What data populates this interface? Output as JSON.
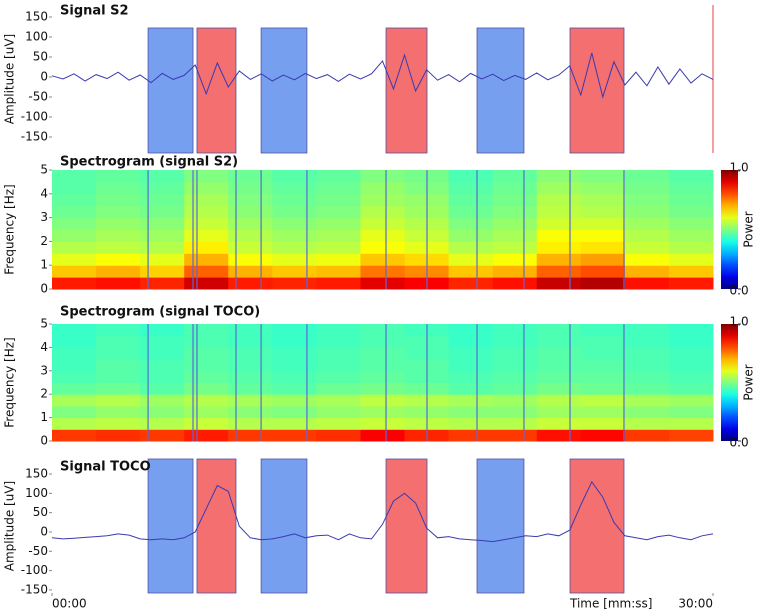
{
  "chart_data": [
    {
      "type": "line",
      "title": "Signal S2",
      "ylabel": "Amplitude [uV]",
      "color": "#3a3ab0",
      "xlim": [
        0,
        30
      ],
      "ylim": [
        -190,
        180
      ],
      "yticks": [
        -150,
        -100,
        -50,
        0,
        50,
        100,
        150
      ],
      "x": [
        0,
        0.5,
        1,
        1.5,
        2,
        2.5,
        3,
        3.5,
        4,
        4.5,
        5,
        5.5,
        6,
        6.5,
        7,
        7.5,
        8,
        8.5,
        9,
        9.5,
        10,
        10.5,
        11,
        11.5,
        12,
        12.5,
        13,
        13.5,
        14,
        14.5,
        15,
        15.5,
        16,
        16.5,
        17,
        17.5,
        18,
        18.5,
        19,
        19.5,
        20,
        20.5,
        21,
        21.5,
        22,
        22.5,
        23,
        23.5,
        24,
        24.5,
        25,
        25.5,
        26,
        26.5,
        27,
        27.5,
        28,
        28.5,
        29,
        29.5,
        30
      ],
      "values": [
        3,
        -5,
        8,
        -10,
        6,
        -4,
        12,
        -8,
        5,
        -14,
        9,
        -6,
        4,
        30,
        -42,
        35,
        -25,
        15,
        -6,
        8,
        -10,
        5,
        -7,
        9,
        -4,
        6,
        -11,
        7,
        -5,
        8,
        40,
        -30,
        55,
        -35,
        18,
        -8,
        6,
        -12,
        9,
        -5,
        7,
        -9,
        4,
        -6,
        10,
        -7,
        5,
        28,
        -45,
        60,
        -50,
        38,
        -20,
        12,
        -22,
        25,
        -18,
        20,
        -15,
        8,
        -6
      ],
      "regions": [
        {
          "start": 4.36,
          "end": 6.4,
          "color": "#779ff0"
        },
        {
          "start": 6.58,
          "end": 8.35,
          "color": "#f46f6f"
        },
        {
          "start": 9.49,
          "end": 11.57,
          "color": "#779ff0"
        },
        {
          "start": 15.16,
          "end": 17.02,
          "color": "#f46f6f"
        },
        {
          "start": 19.29,
          "end": 21.42,
          "color": "#779ff0"
        },
        {
          "start": 23.51,
          "end": 25.96,
          "color": "#f46f6f"
        }
      ]
    },
    {
      "type": "heatmap",
      "title": "Spectrogram (signal S2)",
      "ylabel": "Frequency [Hz]",
      "colorbar_label": "Power",
      "xlim": [
        0,
        30
      ],
      "ylim": [
        0,
        5
      ],
      "yticks": [
        0,
        1,
        2,
        3,
        4,
        5
      ],
      "clim": [
        0,
        1
      ],
      "cticks": [
        {
          "value": 0,
          "label": "0.0"
        },
        {
          "value": 1,
          "label": "1.0"
        }
      ],
      "z": [
        [
          0.85,
          0.86,
          0.84,
          0.92,
          0.85,
          0.84,
          0.85,
          0.9,
          0.88,
          0.84,
          0.86,
          0.93,
          0.95,
          0.86,
          0.85
        ],
        [
          0.68,
          0.7,
          0.67,
          0.78,
          0.7,
          0.68,
          0.69,
          0.76,
          0.74,
          0.68,
          0.7,
          0.78,
          0.8,
          0.7,
          0.68
        ],
        [
          0.6,
          0.62,
          0.6,
          0.7,
          0.62,
          0.6,
          0.61,
          0.68,
          0.66,
          0.6,
          0.62,
          0.7,
          0.72,
          0.62,
          0.6
        ],
        [
          0.55,
          0.56,
          0.55,
          0.64,
          0.57,
          0.55,
          0.56,
          0.62,
          0.6,
          0.55,
          0.56,
          0.64,
          0.65,
          0.57,
          0.55
        ],
        [
          0.52,
          0.54,
          0.53,
          0.6,
          0.55,
          0.53,
          0.54,
          0.6,
          0.57,
          0.52,
          0.54,
          0.62,
          0.62,
          0.55,
          0.53
        ],
        [
          0.5,
          0.52,
          0.51,
          0.57,
          0.53,
          0.51,
          0.52,
          0.57,
          0.55,
          0.5,
          0.52,
          0.58,
          0.58,
          0.53,
          0.51
        ],
        [
          0.48,
          0.5,
          0.49,
          0.55,
          0.51,
          0.49,
          0.5,
          0.55,
          0.53,
          0.48,
          0.5,
          0.56,
          0.55,
          0.51,
          0.49
        ],
        [
          0.47,
          0.49,
          0.48,
          0.54,
          0.5,
          0.48,
          0.49,
          0.53,
          0.52,
          0.47,
          0.49,
          0.55,
          0.54,
          0.5,
          0.48
        ],
        [
          0.46,
          0.48,
          0.47,
          0.52,
          0.49,
          0.47,
          0.48,
          0.52,
          0.5,
          0.46,
          0.48,
          0.53,
          0.52,
          0.49,
          0.47
        ],
        [
          0.46,
          0.47,
          0.46,
          0.5,
          0.48,
          0.46,
          0.47,
          0.5,
          0.49,
          0.45,
          0.47,
          0.51,
          0.5,
          0.48,
          0.46
        ]
      ],
      "regions": [
        {
          "start": 4.36,
          "end": 6.4,
          "color": "#5a6ad8"
        },
        {
          "start": 6.58,
          "end": 8.35,
          "color": "#5a6ad8"
        },
        {
          "start": 9.49,
          "end": 11.57,
          "color": "#5a6ad8"
        },
        {
          "start": 15.16,
          "end": 17.02,
          "color": "#5a6ad8"
        },
        {
          "start": 19.29,
          "end": 21.42,
          "color": "#5a6ad8"
        },
        {
          "start": 23.51,
          "end": 25.96,
          "color": "#5a6ad8"
        }
      ]
    },
    {
      "type": "heatmap",
      "title": "Spectrogram (signal TOCO)",
      "ylabel": "Frequency [Hz]",
      "colorbar_label": "Power",
      "xlim": [
        0,
        30
      ],
      "ylim": [
        0,
        5
      ],
      "yticks": [
        0,
        1,
        2,
        3,
        4,
        5
      ],
      "clim": [
        0,
        1
      ],
      "cticks": [
        {
          "value": 0,
          "label": "0.0"
        },
        {
          "value": 1,
          "label": "1.0"
        }
      ],
      "z": [
        [
          0.82,
          0.83,
          0.82,
          0.85,
          0.82,
          0.82,
          0.83,
          0.88,
          0.84,
          0.82,
          0.82,
          0.86,
          0.87,
          0.82,
          0.81
        ],
        [
          0.55,
          0.56,
          0.55,
          0.57,
          0.55,
          0.55,
          0.56,
          0.57,
          0.56,
          0.55,
          0.55,
          0.57,
          0.57,
          0.55,
          0.55
        ],
        [
          0.5,
          0.52,
          0.51,
          0.53,
          0.51,
          0.5,
          0.52,
          0.53,
          0.52,
          0.51,
          0.51,
          0.53,
          0.53,
          0.51,
          0.5
        ],
        [
          0.54,
          0.55,
          0.53,
          0.55,
          0.54,
          0.53,
          0.54,
          0.56,
          0.55,
          0.54,
          0.53,
          0.55,
          0.56,
          0.54,
          0.53
        ],
        [
          0.47,
          0.48,
          0.46,
          0.49,
          0.47,
          0.46,
          0.48,
          0.49,
          0.48,
          0.46,
          0.47,
          0.49,
          0.48,
          0.47,
          0.46
        ],
        [
          0.45,
          0.46,
          0.45,
          0.47,
          0.46,
          0.45,
          0.46,
          0.47,
          0.46,
          0.45,
          0.46,
          0.47,
          0.47,
          0.46,
          0.45
        ],
        [
          0.44,
          0.46,
          0.45,
          0.46,
          0.45,
          0.44,
          0.45,
          0.46,
          0.46,
          0.44,
          0.45,
          0.46,
          0.46,
          0.45,
          0.44
        ],
        [
          0.44,
          0.45,
          0.44,
          0.46,
          0.45,
          0.44,
          0.45,
          0.46,
          0.45,
          0.44,
          0.45,
          0.46,
          0.45,
          0.45,
          0.44
        ],
        [
          0.43,
          0.45,
          0.44,
          0.45,
          0.44,
          0.43,
          0.44,
          0.45,
          0.45,
          0.43,
          0.44,
          0.45,
          0.45,
          0.44,
          0.43
        ],
        [
          0.43,
          0.44,
          0.43,
          0.45,
          0.44,
          0.43,
          0.44,
          0.45,
          0.44,
          0.43,
          0.44,
          0.45,
          0.44,
          0.44,
          0.43
        ]
      ],
      "regions": [
        {
          "start": 4.36,
          "end": 6.4,
          "color": "#5a6ad8"
        },
        {
          "start": 6.58,
          "end": 8.35,
          "color": "#5a6ad8"
        },
        {
          "start": 9.49,
          "end": 11.57,
          "color": "#5a6ad8"
        },
        {
          "start": 15.16,
          "end": 17.02,
          "color": "#5a6ad8"
        },
        {
          "start": 19.29,
          "end": 21.42,
          "color": "#5a6ad8"
        },
        {
          "start": 23.51,
          "end": 25.96,
          "color": "#5a6ad8"
        }
      ]
    },
    {
      "type": "line",
      "title": "Signal TOCO",
      "ylabel": "Amplitude [uV]",
      "xlabel": "Time  [mm:ss]",
      "color": "#3a3ab0",
      "xlim": [
        0,
        30
      ],
      "ylim": [
        -158,
        189
      ],
      "yticks": [
        -150,
        -100,
        -50,
        0,
        50,
        100,
        150
      ],
      "xticks": [
        {
          "value": 0,
          "label": "00:00"
        },
        {
          "value": 30,
          "label": "30:00"
        }
      ],
      "x": [
        0,
        0.5,
        1,
        1.5,
        2,
        2.5,
        3,
        3.5,
        4,
        4.5,
        5,
        5.5,
        6,
        6.5,
        7,
        7.5,
        8,
        8.5,
        9,
        9.5,
        10,
        10.5,
        11,
        11.5,
        12,
        12.5,
        13,
        13.5,
        14,
        14.5,
        15,
        15.5,
        16,
        16.5,
        17,
        17.5,
        18,
        18.5,
        19,
        19.5,
        20,
        20.5,
        21,
        21.5,
        22,
        22.5,
        23,
        23.5,
        24,
        24.5,
        25,
        25.5,
        26,
        26.5,
        27,
        27.5,
        28,
        28.5,
        29,
        29.5,
        30
      ],
      "values": [
        -15,
        -18,
        -16,
        -14,
        -12,
        -10,
        -5,
        -8,
        -18,
        -20,
        -18,
        -20,
        -15,
        0,
        60,
        120,
        105,
        15,
        -15,
        -20,
        -18,
        -12,
        -5,
        -15,
        -10,
        -8,
        -20,
        -5,
        -15,
        -18,
        20,
        80,
        100,
        75,
        10,
        -15,
        -12,
        -18,
        -20,
        -22,
        -25,
        -20,
        -15,
        -10,
        -12,
        -5,
        -10,
        5,
        70,
        130,
        90,
        25,
        -10,
        -15,
        -20,
        -12,
        -8,
        -15,
        -20,
        -10,
        -5
      ],
      "regions": [
        {
          "start": 4.36,
          "end": 6.4,
          "color": "#779ff0"
        },
        {
          "start": 6.58,
          "end": 8.35,
          "color": "#f46f6f"
        },
        {
          "start": 9.49,
          "end": 11.57,
          "color": "#779ff0"
        },
        {
          "start": 15.16,
          "end": 17.02,
          "color": "#f46f6f"
        },
        {
          "start": 19.29,
          "end": 21.42,
          "color": "#779ff0"
        },
        {
          "start": 23.51,
          "end": 25.96,
          "color": "#f46f6f"
        }
      ]
    }
  ]
}
